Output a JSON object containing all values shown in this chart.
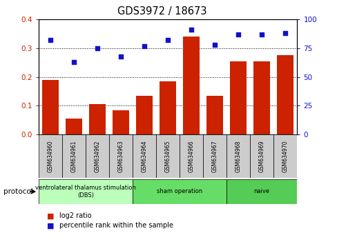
{
  "title": "GDS3972 / 18673",
  "categories": [
    "GSM634960",
    "GSM634961",
    "GSM634962",
    "GSM634963",
    "GSM634964",
    "GSM634965",
    "GSM634966",
    "GSM634967",
    "GSM634968",
    "GSM634969",
    "GSM634970"
  ],
  "log2_ratio": [
    0.19,
    0.055,
    0.105,
    0.083,
    0.133,
    0.185,
    0.34,
    0.135,
    0.255,
    0.255,
    0.275
  ],
  "percentile_rank": [
    82,
    63,
    75,
    68,
    77,
    82,
    91,
    78,
    87,
    87,
    88
  ],
  "bar_color": "#cc2200",
  "dot_color": "#1111cc",
  "ylim_left": [
    0,
    0.4
  ],
  "ylim_right": [
    0,
    100
  ],
  "yticks_left": [
    0,
    0.1,
    0.2,
    0.3,
    0.4
  ],
  "yticks_right": [
    0,
    25,
    50,
    75,
    100
  ],
  "groups": [
    {
      "label": "ventrolateral thalamus stimulation\n(DBS)",
      "start": 0,
      "end": 4,
      "color": "#bbffbb"
    },
    {
      "label": "sham operation",
      "start": 4,
      "end": 8,
      "color": "#66dd66"
    },
    {
      "label": "naive",
      "start": 8,
      "end": 11,
      "color": "#55cc55"
    }
  ],
  "label_box_color": "#cccccc",
  "protocol_label": "protocol",
  "legend_bar_label": "log2 ratio",
  "legend_dot_label": "percentile rank within the sample"
}
